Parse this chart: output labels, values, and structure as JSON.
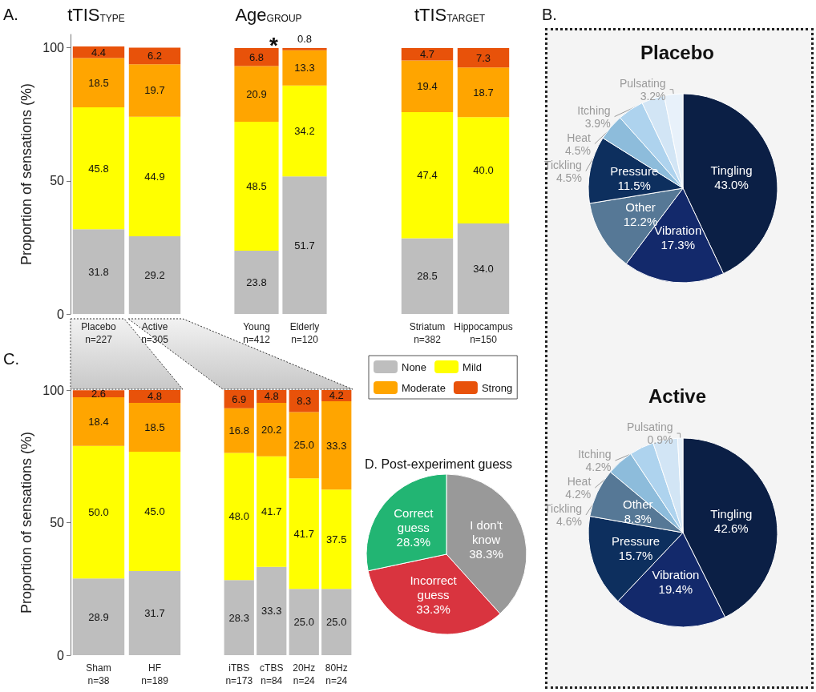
{
  "chart_data": [
    {
      "type": "bar",
      "title": "tTIS$_{TYPE}$",
      "ylabel": "Proportion of sensations (%)",
      "annotations": [
        "A."
      ],
      "categories": [
        "Placebo\nn=227",
        "Active\nn=305"
      ],
      "stacked": true,
      "ylim": [
        0,
        105
      ],
      "yticks": [
        0,
        50,
        100
      ],
      "data_labels": true,
      "series": [
        {
          "color": "#bebebe",
          "values": [
            31.8,
            29.2
          ],
          "value_labels": [
            "31.8",
            "29.2"
          ]
        },
        {
          "color": "#ffff00",
          "values": [
            45.8,
            44.9
          ],
          "value_labels": [
            "45.8",
            "44.9"
          ]
        },
        {
          "color": "#ffa500",
          "values": [
            18.5,
            19.7
          ],
          "value_labels": [
            "18.5",
            "19.7"
          ]
        },
        {
          "color": "#e8520a",
          "values": [
            4.4,
            6.2
          ],
          "value_labels": [
            "4.4",
            "6.2"
          ]
        }
      ]
    },
    {
      "type": "bar",
      "title": "Age$_{GROUP}$",
      "annotations": [
        {
          "text": "*",
          "x": "Elderly\nn=120",
          "y": 100
        }
      ],
      "categories": [
        "Young\nn=412",
        "Elderly\nn=120"
      ],
      "stacked": true,
      "ylim": [
        0,
        100
      ],
      "yticks": [
        0,
        50,
        100
      ],
      "tick_labels": "x",
      "data_labels": true,
      "series": [
        {
          "color": "#bebebe",
          "values": [
            23.8,
            51.7
          ],
          "value_labels": [
            "23.8",
            "51.7"
          ]
        },
        {
          "color": "#ffff00",
          "values": [
            48.5,
            34.2
          ],
          "value_labels": [
            "48.5",
            "34.2"
          ]
        },
        {
          "color": "#ffa500",
          "values": [
            20.9,
            13.3
          ],
          "value_labels": [
            "20.9",
            "13.3"
          ]
        },
        {
          "color": "#e8520a",
          "values": [
            6.8,
            0.8
          ],
          "value_labels": [
            "6.8",
            "0.8"
          ]
        }
      ]
    },
    {
      "type": "bar",
      "title": "tTIS$_{TARGET}$",
      "categories": [
        "Striatum\nn=382",
        "Hippocampus\nn=150"
      ],
      "stacked": true,
      "ylim": [
        0,
        100
      ],
      "yticks": [
        0,
        50,
        100
      ],
      "tick_labels": "x",
      "data_labels": true,
      "legend": "bottom",
      "series": [
        {
          "name": "None",
          "color": "#bebebe",
          "values": [
            28.5,
            34.0
          ],
          "value_labels": [
            "28.5",
            "34.0"
          ]
        },
        {
          "name": "Mild",
          "color": "#ffff00",
          "values": [
            47.4,
            40.0
          ],
          "value_labels": [
            "47.4",
            "40.0"
          ]
        },
        {
          "name": "Moderate",
          "color": "#ffa500",
          "values": [
            19.4,
            18.7
          ],
          "value_labels": [
            "19.4",
            "18.7"
          ]
        },
        {
          "name": "Strong",
          "color": "#e8520a",
          "values": [
            4.7,
            7.3
          ],
          "value_labels": [
            "4.7",
            "7.3"
          ]
        }
      ]
    },
    {
      "type": "bar",
      "ylabel": "Proportion of sensations (%)",
      "annotations": [
        "C."
      ],
      "categories": [
        "Sham\nn=38",
        "HF\nn=189"
      ],
      "stacked": true,
      "ylim": [
        0,
        100
      ],
      "yticks": [
        0,
        50,
        100
      ],
      "data_labels": true,
      "series": [
        {
          "color": "#bebebe",
          "values": [
            28.9,
            31.7
          ],
          "value_labels": [
            "28.9",
            "31.7"
          ]
        },
        {
          "color": "#ffff00",
          "values": [
            50.0,
            45.0
          ],
          "value_labels": [
            "50.0",
            "45.0"
          ]
        },
        {
          "color": "#ffa500",
          "values": [
            18.4,
            18.5
          ],
          "value_labels": [
            "18.4",
            "18.5"
          ]
        },
        {
          "color": "#e8520a",
          "values": [
            2.6,
            4.8
          ],
          "value_labels": [
            "2.6",
            "4.8"
          ]
        }
      ]
    },
    {
      "type": "bar",
      "categories": [
        "iTBS\nn=173",
        "cTBS\nn=84",
        "20Hz\nn=24",
        "80Hz\nn=24"
      ],
      "stacked": true,
      "ylim": [
        0,
        100
      ],
      "yticks": [
        0,
        50,
        100
      ],
      "tick_labels": "x",
      "data_labels": true,
      "series": [
        {
          "color": "#bebebe",
          "values": [
            28.3,
            33.3,
            25.0,
            25.0
          ],
          "value_labels": [
            "28.3",
            "33.3",
            "25.0",
            "25.0"
          ]
        },
        {
          "color": "#ffff00",
          "values": [
            48.0,
            41.7,
            41.7,
            37.5
          ],
          "value_labels": [
            "48.0",
            "41.7",
            "41.7",
            "37.5"
          ]
        },
        {
          "color": "#ffa500",
          "values": [
            16.8,
            20.2,
            25.0,
            33.3
          ],
          "value_labels": [
            "16.8",
            "20.2",
            "25.0",
            "33.3"
          ]
        },
        {
          "color": "#e8520a",
          "values": [
            6.9,
            4.8,
            8.3,
            4.2
          ],
          "value_labels": [
            "6.9",
            "4.8",
            "8.3",
            "4.2"
          ]
        }
      ]
    },
    {
      "type": "pie",
      "title": "Placebo",
      "annotations": [
        "B."
      ],
      "data_labels": true,
      "categories": [
        "Tingling",
        "Vibration",
        "Other",
        "Pressure",
        "Tickling",
        "Heat",
        "Itching",
        "Pulsating"
      ],
      "values": [
        43.0,
        17.3,
        12.2,
        11.5,
        4.5,
        4.5,
        3.9,
        3.2
      ],
      "value_labels": [
        "43.0%",
        "17.3%",
        "12.2%",
        "11.5%",
        "4.5%",
        "4.5%",
        "3.9%",
        "3.2%"
      ],
      "colors": [
        "#0b1f45",
        "#13296b",
        "#567896",
        "#0d2f5e",
        "#8dbcdb",
        "#aed3ee",
        "#d2e5f5",
        "#e8f1fa"
      ]
    },
    {
      "type": "pie",
      "title": "Active",
      "data_labels": true,
      "categories": [
        "Tingling",
        "Vibration",
        "Pressure",
        "Other",
        "Tickling",
        "Heat",
        "Itching",
        "Pulsating"
      ],
      "values": [
        42.6,
        19.4,
        15.7,
        8.3,
        4.6,
        4.2,
        4.2,
        0.9
      ],
      "value_labels": [
        "42.6%",
        "19.4%",
        "15.7%",
        "8.3%",
        "4.6%",
        "4.2%",
        "4.2%",
        "0.9%"
      ],
      "colors": [
        "#0b1f45",
        "#13296b",
        "#0d2f5e",
        "#567896",
        "#8dbcdb",
        "#aed3ee",
        "#d2e5f5",
        "#e8f1fa"
      ]
    },
    {
      "type": "pie",
      "title": "D. Post-experiment guess",
      "data_labels": true,
      "categories": [
        "I don't know",
        "Incorrect guess",
        "Correct guess"
      ],
      "values": [
        38.3,
        33.3,
        28.3
      ],
      "value_labels": [
        "38.3%",
        "33.3%",
        "28.3%"
      ],
      "colors": [
        "#999999",
        "#d9343f",
        "#22b573"
      ]
    }
  ]
}
